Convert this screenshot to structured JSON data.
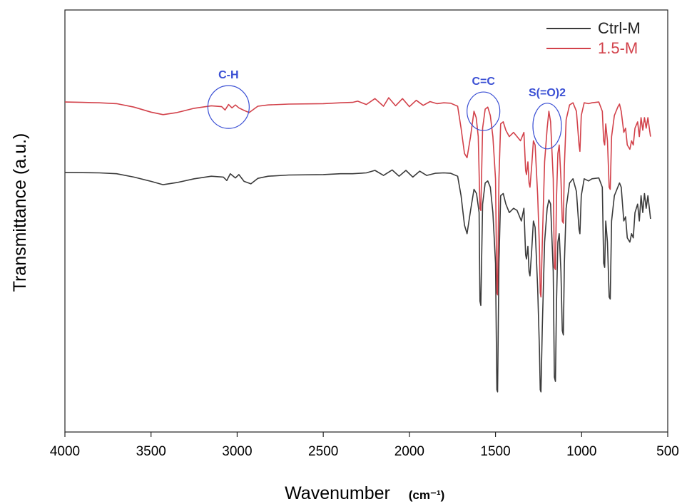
{
  "chart_data": {
    "type": "line",
    "title": "",
    "xlabel": "Wavenumber",
    "xlabel_unit": "(cm⁻¹)",
    "ylabel": "Transmittance (a.u.)",
    "xlim": [
      4000,
      500
    ],
    "x_reversed": true,
    "ylim": [
      0,
      1
    ],
    "y_tick_labels_shown": false,
    "grid": false,
    "legend_position": "top-right",
    "x_ticks": [
      {
        "value": 4000,
        "label": "4000"
      },
      {
        "value": 3500,
        "label": "3500"
      },
      {
        "value": 3000,
        "label": "3000"
      },
      {
        "value": 2500,
        "label": "2500"
      },
      {
        "value": 2000,
        "label": "2000"
      },
      {
        "value": 1500,
        "label": "1500"
      },
      {
        "value": 1000,
        "label": "1000"
      },
      {
        "value": 500,
        "label": "500"
      }
    ],
    "series": [
      {
        "name": "Ctrl-M",
        "color": "#3a3a3a",
        "points": [
          [
            4000,
            0.615
          ],
          [
            3800,
            0.614
          ],
          [
            3700,
            0.612
          ],
          [
            3600,
            0.604
          ],
          [
            3500,
            0.594
          ],
          [
            3430,
            0.586
          ],
          [
            3350,
            0.591
          ],
          [
            3250,
            0.6
          ],
          [
            3150,
            0.606
          ],
          [
            3080,
            0.604
          ],
          [
            3060,
            0.596
          ],
          [
            3040,
            0.612
          ],
          [
            3010,
            0.602
          ],
          [
            2990,
            0.61
          ],
          [
            2960,
            0.594
          ],
          [
            2920,
            0.588
          ],
          [
            2880,
            0.601
          ],
          [
            2820,
            0.606
          ],
          [
            2700,
            0.609
          ],
          [
            2500,
            0.61
          ],
          [
            2400,
            0.612
          ],
          [
            2330,
            0.612
          ],
          [
            2250,
            0.614
          ],
          [
            2200,
            0.62
          ],
          [
            2150,
            0.608
          ],
          [
            2100,
            0.621
          ],
          [
            2060,
            0.606
          ],
          [
            2020,
            0.62
          ],
          [
            1980,
            0.604
          ],
          [
            1940,
            0.618
          ],
          [
            1900,
            0.608
          ],
          [
            1850,
            0.613
          ],
          [
            1800,
            0.614
          ],
          [
            1760,
            0.613
          ],
          [
            1720,
            0.606
          ],
          [
            1700,
            0.56
          ],
          [
            1680,
            0.49
          ],
          [
            1665,
            0.47
          ],
          [
            1645,
            0.525
          ],
          [
            1625,
            0.575
          ],
          [
            1610,
            0.565
          ],
          [
            1595,
            0.52
          ],
          [
            1590,
            0.31
          ],
          [
            1585,
            0.3
          ],
          [
            1575,
            0.54
          ],
          [
            1560,
            0.59
          ],
          [
            1545,
            0.595
          ],
          [
            1530,
            0.58
          ],
          [
            1515,
            0.52
          ],
          [
            1500,
            0.4
          ],
          [
            1492,
            0.1
          ],
          [
            1488,
            0.095
          ],
          [
            1480,
            0.4
          ],
          [
            1470,
            0.56
          ],
          [
            1455,
            0.565
          ],
          [
            1440,
            0.54
          ],
          [
            1420,
            0.52
          ],
          [
            1395,
            0.53
          ],
          [
            1375,
            0.525
          ],
          [
            1350,
            0.5
          ],
          [
            1335,
            0.53
          ],
          [
            1325,
            0.42
          ],
          [
            1320,
            0.41
          ],
          [
            1312,
            0.44
          ],
          [
            1305,
            0.38
          ],
          [
            1300,
            0.37
          ],
          [
            1290,
            0.43
          ],
          [
            1280,
            0.5
          ],
          [
            1270,
            0.485
          ],
          [
            1255,
            0.34
          ],
          [
            1245,
            0.2
          ],
          [
            1240,
            0.1
          ],
          [
            1236,
            0.095
          ],
          [
            1228,
            0.25
          ],
          [
            1215,
            0.45
          ],
          [
            1200,
            0.53
          ],
          [
            1190,
            0.55
          ],
          [
            1180,
            0.54
          ],
          [
            1165,
            0.38
          ],
          [
            1158,
            0.13
          ],
          [
            1152,
            0.12
          ],
          [
            1146,
            0.3
          ],
          [
            1138,
            0.45
          ],
          [
            1130,
            0.47
          ],
          [
            1120,
            0.38
          ],
          [
            1112,
            0.24
          ],
          [
            1106,
            0.23
          ],
          [
            1100,
            0.4
          ],
          [
            1090,
            0.53
          ],
          [
            1070,
            0.59
          ],
          [
            1050,
            0.6
          ],
          [
            1030,
            0.57
          ],
          [
            1015,
            0.48
          ],
          [
            1010,
            0.47
          ],
          [
            1002,
            0.56
          ],
          [
            985,
            0.6
          ],
          [
            960,
            0.595
          ],
          [
            940,
            0.6
          ],
          [
            900,
            0.602
          ],
          [
            880,
            0.58
          ],
          [
            872,
            0.4
          ],
          [
            866,
            0.39
          ],
          [
            860,
            0.5
          ],
          [
            850,
            0.45
          ],
          [
            840,
            0.32
          ],
          [
            834,
            0.315
          ],
          [
            826,
            0.5
          ],
          [
            810,
            0.56
          ],
          [
            790,
            0.58
          ],
          [
            780,
            0.59
          ],
          [
            770,
            0.58
          ],
          [
            755,
            0.5
          ],
          [
            745,
            0.51
          ],
          [
            735,
            0.46
          ],
          [
            720,
            0.45
          ],
          [
            710,
            0.47
          ],
          [
            700,
            0.46
          ],
          [
            690,
            0.52
          ],
          [
            675,
            0.54
          ],
          [
            665,
            0.5
          ],
          [
            655,
            0.56
          ],
          [
            645,
            0.52
          ],
          [
            635,
            0.565
          ],
          [
            625,
            0.53
          ],
          [
            615,
            0.56
          ],
          [
            605,
            0.525
          ],
          [
            600,
            0.505
          ]
        ]
      },
      {
        "name": "1.5-M",
        "color": "#d2414a",
        "points": [
          [
            4000,
            0.782
          ],
          [
            3900,
            0.781
          ],
          [
            3800,
            0.78
          ],
          [
            3700,
            0.778
          ],
          [
            3600,
            0.77
          ],
          [
            3500,
            0.758
          ],
          [
            3430,
            0.752
          ],
          [
            3350,
            0.757
          ],
          [
            3250,
            0.767
          ],
          [
            3150,
            0.773
          ],
          [
            3090,
            0.771
          ],
          [
            3070,
            0.763
          ],
          [
            3050,
            0.776
          ],
          [
            3030,
            0.768
          ],
          [
            3010,
            0.775
          ],
          [
            2990,
            0.768
          ],
          [
            2960,
            0.762
          ],
          [
            2930,
            0.757
          ],
          [
            2880,
            0.772
          ],
          [
            2820,
            0.775
          ],
          [
            2700,
            0.777
          ],
          [
            2500,
            0.778
          ],
          [
            2400,
            0.78
          ],
          [
            2330,
            0.781
          ],
          [
            2300,
            0.784
          ],
          [
            2250,
            0.776
          ],
          [
            2200,
            0.79
          ],
          [
            2150,
            0.772
          ],
          [
            2120,
            0.792
          ],
          [
            2080,
            0.773
          ],
          [
            2040,
            0.79
          ],
          [
            2000,
            0.771
          ],
          [
            1960,
            0.786
          ],
          [
            1920,
            0.774
          ],
          [
            1880,
            0.783
          ],
          [
            1840,
            0.778
          ],
          [
            1800,
            0.78
          ],
          [
            1760,
            0.779
          ],
          [
            1720,
            0.772
          ],
          [
            1700,
            0.72
          ],
          [
            1680,
            0.66
          ],
          [
            1665,
            0.65
          ],
          [
            1645,
            0.7
          ],
          [
            1625,
            0.76
          ],
          [
            1612,
            0.745
          ],
          [
            1600,
            0.7
          ],
          [
            1590,
            0.53
          ],
          [
            1585,
            0.525
          ],
          [
            1575,
            0.72
          ],
          [
            1560,
            0.765
          ],
          [
            1545,
            0.77
          ],
          [
            1530,
            0.75
          ],
          [
            1515,
            0.7
          ],
          [
            1500,
            0.6
          ],
          [
            1492,
            0.33
          ],
          [
            1488,
            0.325
          ],
          [
            1480,
            0.6
          ],
          [
            1470,
            0.73
          ],
          [
            1455,
            0.735
          ],
          [
            1440,
            0.715
          ],
          [
            1420,
            0.7
          ],
          [
            1395,
            0.71
          ],
          [
            1375,
            0.7
          ],
          [
            1355,
            0.69
          ],
          [
            1335,
            0.71
          ],
          [
            1325,
            0.62
          ],
          [
            1320,
            0.61
          ],
          [
            1312,
            0.64
          ],
          [
            1305,
            0.59
          ],
          [
            1300,
            0.58
          ],
          [
            1290,
            0.63
          ],
          [
            1280,
            0.69
          ],
          [
            1270,
            0.68
          ],
          [
            1255,
            0.56
          ],
          [
            1245,
            0.44
          ],
          [
            1240,
            0.33
          ],
          [
            1236,
            0.32
          ],
          [
            1228,
            0.45
          ],
          [
            1215,
            0.64
          ],
          [
            1200,
            0.72
          ],
          [
            1190,
            0.76
          ],
          [
            1180,
            0.735
          ],
          [
            1165,
            0.6
          ],
          [
            1158,
            0.39
          ],
          [
            1152,
            0.385
          ],
          [
            1146,
            0.55
          ],
          [
            1138,
            0.66
          ],
          [
            1130,
            0.68
          ],
          [
            1120,
            0.6
          ],
          [
            1112,
            0.5
          ],
          [
            1106,
            0.495
          ],
          [
            1100,
            0.63
          ],
          [
            1090,
            0.74
          ],
          [
            1070,
            0.775
          ],
          [
            1050,
            0.78
          ],
          [
            1030,
            0.76
          ],
          [
            1015,
            0.68
          ],
          [
            1010,
            0.665
          ],
          [
            1002,
            0.75
          ],
          [
            985,
            0.78
          ],
          [
            960,
            0.778
          ],
          [
            940,
            0.78
          ],
          [
            900,
            0.782
          ],
          [
            880,
            0.76
          ],
          [
            872,
            0.69
          ],
          [
            866,
            0.68
          ],
          [
            860,
            0.73
          ],
          [
            850,
            0.69
          ],
          [
            840,
            0.58
          ],
          [
            834,
            0.575
          ],
          [
            826,
            0.7
          ],
          [
            810,
            0.75
          ],
          [
            790,
            0.77
          ],
          [
            780,
            0.777
          ],
          [
            770,
            0.76
          ],
          [
            755,
            0.71
          ],
          [
            745,
            0.72
          ],
          [
            735,
            0.68
          ],
          [
            720,
            0.67
          ],
          [
            710,
            0.69
          ],
          [
            700,
            0.68
          ],
          [
            690,
            0.72
          ],
          [
            675,
            0.735
          ],
          [
            665,
            0.7
          ],
          [
            655,
            0.745
          ],
          [
            645,
            0.715
          ],
          [
            635,
            0.745
          ],
          [
            625,
            0.72
          ],
          [
            615,
            0.745
          ],
          [
            605,
            0.715
          ],
          [
            600,
            0.7
          ]
        ]
      }
    ],
    "annotations": [
      {
        "text": "C-H",
        "x": 3050,
        "y": 0.77,
        "color": "#3a4fd4"
      },
      {
        "text": "C=C",
        "x": 1570,
        "y": 0.76,
        "color": "#3a4fd4"
      },
      {
        "text": "S(=O)2",
        "x": 1200,
        "y": 0.725,
        "color": "#3a4fd4"
      }
    ]
  }
}
